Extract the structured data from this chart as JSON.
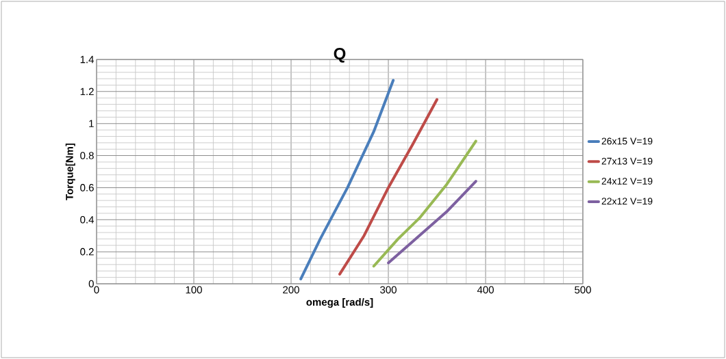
{
  "chart_data": {
    "type": "line",
    "title": "Q",
    "xlabel": "omega [rad/s]",
    "ylabel": "Torque[Nm]",
    "xlim": [
      0,
      500
    ],
    "ylim": [
      0,
      1.4
    ],
    "xticks": [
      0,
      100,
      200,
      300,
      400,
      500
    ],
    "yticks": [
      0,
      0.2,
      0.4,
      0.6,
      0.8,
      1,
      1.2,
      1.4
    ],
    "grid": true,
    "legend": "right",
    "marker": "none",
    "line_style": "solid",
    "series": [
      {
        "name": "26x15 V=19",
        "color": "#4a7ebb",
        "x": [
          210,
          230,
          258,
          285,
          305
        ],
        "values": [
          0.03,
          0.28,
          0.6,
          0.95,
          1.27
        ]
      },
      {
        "name": "27x13 V=19",
        "color": "#be4b48",
        "x": [
          250,
          275,
          300,
          325,
          350
        ],
        "values": [
          0.06,
          0.3,
          0.6,
          0.87,
          1.15
        ]
      },
      {
        "name": "24x12 V=19",
        "color": "#98b954",
        "x": [
          285,
          310,
          332,
          360,
          390
        ],
        "values": [
          0.11,
          0.28,
          0.41,
          0.62,
          0.89
        ]
      },
      {
        "name": "22x12 V=19",
        "color": "#7d60a0",
        "x": [
          300,
          330,
          360,
          390
        ],
        "values": [
          0.13,
          0.29,
          0.45,
          0.64
        ]
      }
    ]
  }
}
